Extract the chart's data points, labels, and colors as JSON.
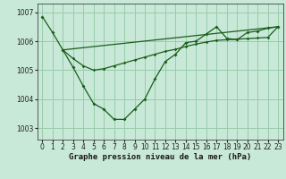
{
  "title": "Graphe pression niveau de la mer (hPa)",
  "background_color": "#c8e8d8",
  "grid_color": "#99ccaa",
  "line_color": "#1a5e1a",
  "xlim": [
    -0.5,
    23.5
  ],
  "ylim": [
    1002.6,
    1007.3
  ],
  "yticks": [
    1003,
    1004,
    1005,
    1006,
    1007
  ],
  "xticks": [
    0,
    1,
    2,
    3,
    4,
    5,
    6,
    7,
    8,
    9,
    10,
    11,
    12,
    13,
    14,
    15,
    16,
    17,
    18,
    19,
    20,
    21,
    22,
    23
  ],
  "series1_x": [
    0,
    1,
    2,
    3,
    4,
    5,
    6,
    7,
    8,
    9,
    10,
    11,
    12,
    13,
    14,
    15,
    16,
    17,
    18,
    19,
    20,
    21,
    22,
    23
  ],
  "series1_y": [
    1006.85,
    1006.3,
    1005.7,
    1005.1,
    1004.45,
    1003.85,
    1003.65,
    1003.3,
    1003.3,
    1003.65,
    1004.0,
    1004.7,
    1005.3,
    1005.55,
    1005.95,
    1006.0,
    1006.25,
    1006.5,
    1006.1,
    1006.05,
    1006.3,
    1006.35,
    1006.45,
    1006.5
  ],
  "series2_x": [
    2,
    3,
    4,
    5,
    6,
    7,
    8,
    9,
    10,
    11,
    12,
    13,
    14,
    15,
    16,
    17,
    18,
    19,
    20,
    21,
    22,
    23
  ],
  "series2_y": [
    1005.7,
    1005.4,
    1005.15,
    1005.0,
    1005.05,
    1005.15,
    1005.25,
    1005.35,
    1005.45,
    1005.55,
    1005.65,
    1005.72,
    1005.82,
    1005.9,
    1005.97,
    1006.03,
    1006.05,
    1006.07,
    1006.09,
    1006.11,
    1006.13,
    1006.5
  ],
  "series3_x": [
    2,
    23
  ],
  "series3_y": [
    1005.7,
    1006.5
  ],
  "title_fontsize": 6.5,
  "tick_fontsize": 5.5
}
